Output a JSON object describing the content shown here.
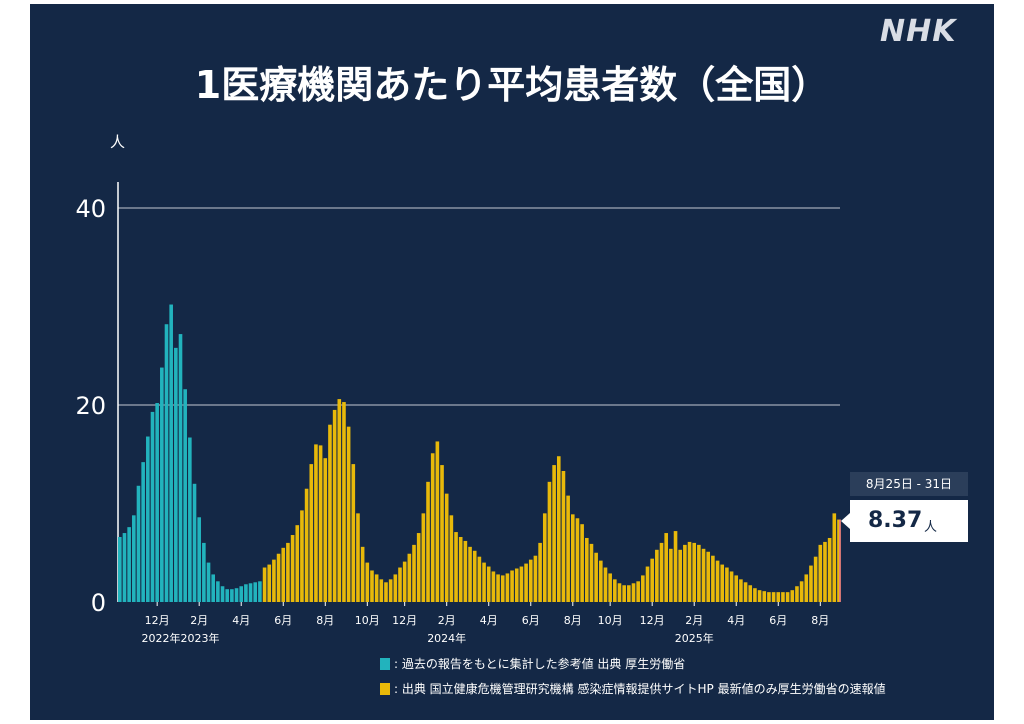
{
  "logo": "NHK",
  "title": "1医療機関あたり平均患者数（全国）",
  "colors": {
    "background": "#142846",
    "past": "#22b3bd",
    "current": "#e8b90a",
    "latest": "#e8748a",
    "grid": "#8a93a3",
    "text": "#ffffff"
  },
  "chart_data": {
    "type": "bar",
    "y_unit": "人",
    "ylim": [
      0,
      40
    ],
    "yticks": [
      0,
      20,
      40
    ],
    "grid": true,
    "x_tick_labels": [
      {
        "idx": 8,
        "label": "12月"
      },
      {
        "idx": 17,
        "label": "2月"
      },
      {
        "idx": 26,
        "label": "4月"
      },
      {
        "idx": 35,
        "label": "6月"
      },
      {
        "idx": 44,
        "label": "8月"
      },
      {
        "idx": 53,
        "label": "10月"
      },
      {
        "idx": 61,
        "label": "12月"
      },
      {
        "idx": 70,
        "label": "2月"
      },
      {
        "idx": 79,
        "label": "4月"
      },
      {
        "idx": 88,
        "label": "6月"
      },
      {
        "idx": 97,
        "label": "8月"
      },
      {
        "idx": 105,
        "label": "10月"
      },
      {
        "idx": 114,
        "label": "12月"
      },
      {
        "idx": 123,
        "label": "2月"
      },
      {
        "idx": 132,
        "label": "4月"
      },
      {
        "idx": 141,
        "label": "6月"
      },
      {
        "idx": 150,
        "label": "8月"
      }
    ],
    "year_labels": [
      {
        "idx": 13,
        "label": "2022年2023年"
      },
      {
        "idx": 70,
        "label": "2024年"
      },
      {
        "idx": 123,
        "label": "2025年"
      }
    ],
    "series": [
      {
        "name": "過去の報告をもとに集計した参考値 出典 厚生労働省",
        "color": "#22b3bd",
        "values": [
          6.6,
          7.0,
          7.6,
          8.8,
          11.8,
          14.2,
          16.8,
          19.3,
          20.2,
          23.8,
          28.2,
          30.2,
          25.8,
          27.2,
          21.6,
          16.7,
          12.0,
          8.6,
          6.0,
          4.0,
          2.8,
          2.1,
          1.6,
          1.3,
          1.3,
          1.4,
          1.6,
          1.8,
          1.9,
          2.0,
          2.1
        ]
      },
      {
        "name": "出典 国立健康危機管理研究機構 感染症情報提供サイトHP 最新値のみ厚生労働省の速報値",
        "color": "#e8b90a",
        "values": [
          3.5,
          3.8,
          4.3,
          4.9,
          5.5,
          6.0,
          6.8,
          7.8,
          9.3,
          11.5,
          14.0,
          16.0,
          15.9,
          14.6,
          18.0,
          19.5,
          20.6,
          20.3,
          17.8,
          14.0,
          9.0,
          5.6,
          4.0,
          3.2,
          2.8,
          2.3,
          2.0,
          2.3,
          2.8,
          3.5,
          4.1,
          4.9,
          5.8,
          7.0,
          9.0,
          12.2,
          15.1,
          16.3,
          13.9,
          11.0,
          8.8,
          7.1,
          6.6,
          6.2,
          5.6,
          5.2,
          4.6,
          4.0,
          3.6,
          3.1,
          2.8,
          2.7,
          2.9,
          3.2,
          3.4,
          3.6,
          3.9,
          4.3,
          4.7,
          6.0,
          9.0,
          12.2,
          13.9,
          14.8,
          13.3,
          10.8,
          8.9,
          8.5,
          7.9,
          6.5,
          5.9,
          5.0,
          4.2,
          3.5,
          2.9,
          2.3,
          1.9,
          1.7,
          1.7,
          1.9,
          2.1,
          2.7,
          3.6,
          4.4,
          5.3,
          6.0,
          7.0,
          5.4,
          7.2,
          5.3,
          5.8,
          6.1,
          6.0,
          5.8,
          5.4,
          5.1,
          4.7,
          4.2,
          3.8,
          3.5,
          3.1,
          2.7,
          2.3,
          2.0,
          1.7,
          1.4,
          1.2,
          1.1,
          1.0,
          1.0,
          1.0,
          1.0,
          1.0,
          1.2,
          1.6,
          2.1,
          2.8,
          3.7,
          4.6,
          5.8,
          6.1,
          6.5,
          9.0,
          8.37
        ]
      }
    ],
    "latest": {
      "date_label": "8月25日 - 31日",
      "value": 8.37,
      "value_text": "8.37",
      "unit": "人"
    }
  }
}
